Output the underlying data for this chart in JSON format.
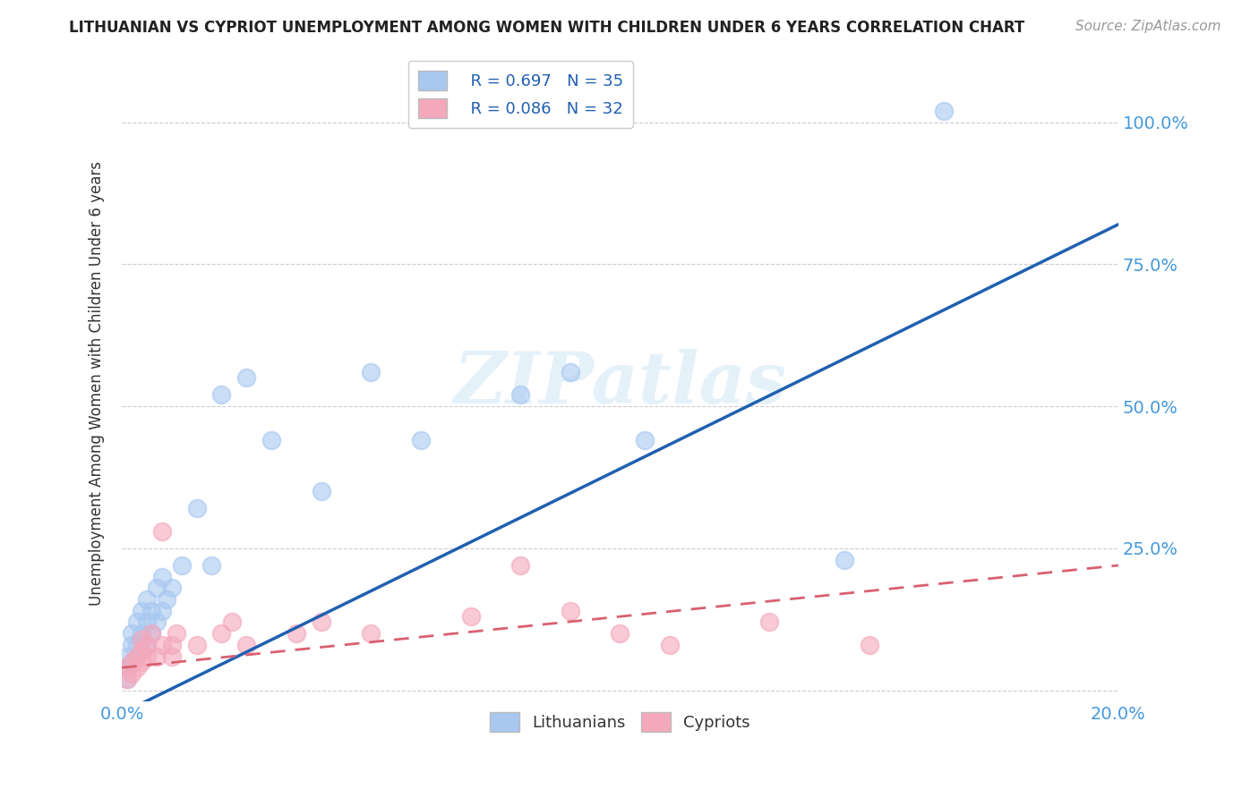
{
  "title": "LITHUANIAN VS CYPRIOT UNEMPLOYMENT AMONG WOMEN WITH CHILDREN UNDER 6 YEARS CORRELATION CHART",
  "source": "Source: ZipAtlas.com",
  "ylabel": "Unemployment Among Women with Children Under 6 years",
  "watermark": "ZIPatlas",
  "legend_r1": "R = 0.697",
  "legend_n1": "N = 35",
  "legend_r2": "R = 0.086",
  "legend_n2": "N = 32",
  "legend_label1": "Lithuanians",
  "legend_label2": "Cypriots",
  "lit_color": "#a8c8f0",
  "cyp_color": "#f4a8bc",
  "lit_line_color": "#2060b0",
  "cyp_line_color": "#d86070",
  "lit_x": [
    0.001,
    0.001,
    0.001,
    0.002,
    0.002,
    0.002,
    0.003,
    0.003,
    0.004,
    0.004,
    0.005,
    0.005,
    0.005,
    0.006,
    0.006,
    0.007,
    0.007,
    0.008,
    0.008,
    0.009,
    0.01,
    0.012,
    0.015,
    0.018,
    0.02,
    0.025,
    0.03,
    0.04,
    0.05,
    0.06,
    0.08,
    0.09,
    0.105,
    0.145,
    0.165
  ],
  "lit_y": [
    0.02,
    0.04,
    0.06,
    0.05,
    0.08,
    0.1,
    0.08,
    0.12,
    0.1,
    0.14,
    0.08,
    0.12,
    0.16,
    0.1,
    0.14,
    0.12,
    0.18,
    0.14,
    0.2,
    0.16,
    0.18,
    0.22,
    0.32,
    0.22,
    0.52,
    0.55,
    0.44,
    0.35,
    0.56,
    0.44,
    0.52,
    0.56,
    0.44,
    0.23,
    1.02
  ],
  "cyp_x": [
    0.001,
    0.001,
    0.002,
    0.002,
    0.003,
    0.003,
    0.004,
    0.004,
    0.004,
    0.005,
    0.005,
    0.006,
    0.007,
    0.008,
    0.008,
    0.01,
    0.01,
    0.011,
    0.015,
    0.02,
    0.022,
    0.025,
    0.035,
    0.04,
    0.05,
    0.07,
    0.08,
    0.09,
    0.1,
    0.11,
    0.13,
    0.15
  ],
  "cyp_y": [
    0.02,
    0.04,
    0.03,
    0.05,
    0.04,
    0.06,
    0.05,
    0.07,
    0.09,
    0.06,
    0.08,
    0.1,
    0.06,
    0.08,
    0.28,
    0.06,
    0.08,
    0.1,
    0.08,
    0.1,
    0.12,
    0.08,
    0.1,
    0.12,
    0.1,
    0.13,
    0.22,
    0.14,
    0.1,
    0.08,
    0.12,
    0.08
  ],
  "lit_line_x0": 0.0,
  "lit_line_x1": 0.2,
  "lit_line_y0": -0.04,
  "lit_line_y1": 0.82,
  "cyp_line_x0": 0.0,
  "cyp_line_x1": 0.2,
  "cyp_line_y0": 0.04,
  "cyp_line_y1": 0.22,
  "xlim": [
    0.0,
    0.2
  ],
  "ylim": [
    -0.02,
    1.1
  ],
  "xticks": [
    0.0,
    0.04,
    0.08,
    0.12,
    0.16,
    0.2
  ],
  "xtick_labels": [
    "0.0%",
    "",
    "",
    "",
    "",
    "20.0%"
  ],
  "yticks": [
    0.0,
    0.25,
    0.5,
    0.75,
    1.0
  ],
  "ytick_labels_right": [
    "",
    "25.0%",
    "50.0%",
    "75.0%",
    "100.0%"
  ],
  "background_color": "#ffffff",
  "grid_color": "#cccccc"
}
